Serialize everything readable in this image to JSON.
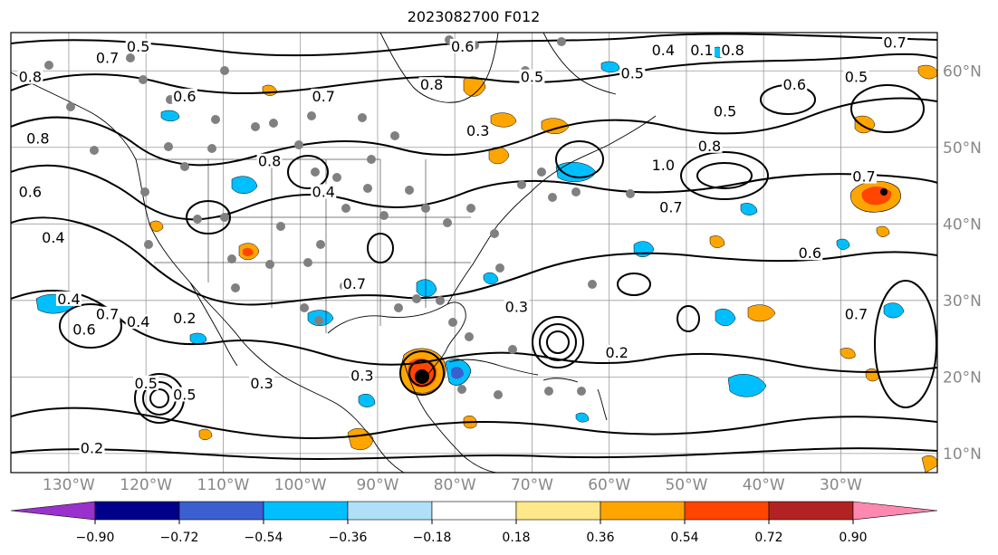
{
  "title": "2023082700 F012",
  "map": {
    "extent": {
      "lon_min": -137.5,
      "lon_max": -17.5,
      "lat_min": 7.5,
      "lat_max": 65
    },
    "lon_ticks": [
      {
        "lon": -130,
        "label": "130°W"
      },
      {
        "lon": -120,
        "label": "120°W"
      },
      {
        "lon": -110,
        "label": "110°W"
      },
      {
        "lon": -100,
        "label": "100°W"
      },
      {
        "lon": -90,
        "label": "90°W"
      },
      {
        "lon": -80,
        "label": "80°W"
      },
      {
        "lon": -70,
        "label": "70°W"
      },
      {
        "lon": -60,
        "label": "60°W"
      },
      {
        "lon": -50,
        "label": "50°W"
      },
      {
        "lon": -40,
        "label": "40°W"
      },
      {
        "lon": -30,
        "label": "30°W"
      }
    ],
    "lat_ticks": [
      {
        "lat": 60,
        "label": "60°N"
      },
      {
        "lat": 50,
        "label": "50°N"
      },
      {
        "lat": 40,
        "label": "40°N"
      },
      {
        "lat": 30,
        "label": "30°N"
      },
      {
        "lat": 20,
        "label": "20°N"
      },
      {
        "lat": 10,
        "label": "10°N"
      }
    ],
    "contour_labels": [
      {
        "lon": -121,
        "lat": 63,
        "text": "0.5"
      },
      {
        "lon": -125,
        "lat": 61.5,
        "text": "0.7"
      },
      {
        "lon": -115,
        "lat": 56.5,
        "text": "0.6"
      },
      {
        "lon": -97,
        "lat": 56.5,
        "text": "0.7"
      },
      {
        "lon": -83,
        "lat": 58,
        "text": "0.8"
      },
      {
        "lon": -79,
        "lat": 63,
        "text": "0.6"
      },
      {
        "lon": -53,
        "lat": 62.5,
        "text": "0.4"
      },
      {
        "lon": -48,
        "lat": 62.5,
        "text": "0.1"
      },
      {
        "lon": -44,
        "lat": 62.5,
        "text": "0.8"
      },
      {
        "lon": -23,
        "lat": 63.5,
        "text": "0.7"
      },
      {
        "lon": -28,
        "lat": 59,
        "text": "0.5"
      },
      {
        "lon": -36,
        "lat": 58,
        "text": "0.6"
      },
      {
        "lon": -57,
        "lat": 59.5,
        "text": "0.5"
      },
      {
        "lon": -70,
        "lat": 59,
        "text": "0.5"
      },
      {
        "lon": -45,
        "lat": 54.5,
        "text": "0.5"
      },
      {
        "lon": -77,
        "lat": 52,
        "text": "0.3"
      },
      {
        "lon": -53,
        "lat": 47.5,
        "text": "1.0"
      },
      {
        "lon": -47,
        "lat": 50,
        "text": "0.8"
      },
      {
        "lon": -52,
        "lat": 42,
        "text": "0.7"
      },
      {
        "lon": -34,
        "lat": 36,
        "text": "0.6"
      },
      {
        "lon": -27,
        "lat": 46,
        "text": "0.7"
      },
      {
        "lon": -135,
        "lat": 59,
        "text": "0.8"
      },
      {
        "lon": -134,
        "lat": 51,
        "text": "0.8"
      },
      {
        "lon": -135,
        "lat": 44,
        "text": "0.6"
      },
      {
        "lon": -132,
        "lat": 38,
        "text": "0.4"
      },
      {
        "lon": -130,
        "lat": 30,
        "text": "0.4"
      },
      {
        "lon": -128,
        "lat": 26,
        "text": "0.6"
      },
      {
        "lon": -125,
        "lat": 28,
        "text": "0.7"
      },
      {
        "lon": -121,
        "lat": 27,
        "text": "0.4"
      },
      {
        "lon": -115,
        "lat": 27.5,
        "text": "0.2"
      },
      {
        "lon": -120,
        "lat": 19,
        "text": "0.5"
      },
      {
        "lon": -115,
        "lat": 17.5,
        "text": "0.5"
      },
      {
        "lon": -127,
        "lat": 10.5,
        "text": "0.2"
      },
      {
        "lon": -105,
        "lat": 19,
        "text": "0.3"
      },
      {
        "lon": -92,
        "lat": 20,
        "text": "0.3"
      },
      {
        "lon": -97,
        "lat": 44,
        "text": "0.4"
      },
      {
        "lon": -104,
        "lat": 48,
        "text": "0.8"
      },
      {
        "lon": -93,
        "lat": 32,
        "text": "0.7"
      },
      {
        "lon": -72,
        "lat": 29,
        "text": "0.3"
      },
      {
        "lon": -59,
        "lat": 23,
        "text": "0.2"
      },
      {
        "lon": -28,
        "lat": 28,
        "text": "0.7"
      }
    ]
  },
  "colorbar": {
    "colors": [
      "#9932cc",
      "#00008b",
      "#3c5fd0",
      "#00bfff",
      "#b0e0f8",
      "#ffffff",
      "#ffe88a",
      "#ffa500",
      "#ff4500",
      "#b22222",
      "#ff88b0"
    ],
    "tick_labels": [
      "−0.90",
      "−0.72",
      "−0.54",
      "−0.36",
      "−0.18",
      "0.18",
      "0.36",
      "0.54",
      "0.72",
      "0.90"
    ]
  }
}
